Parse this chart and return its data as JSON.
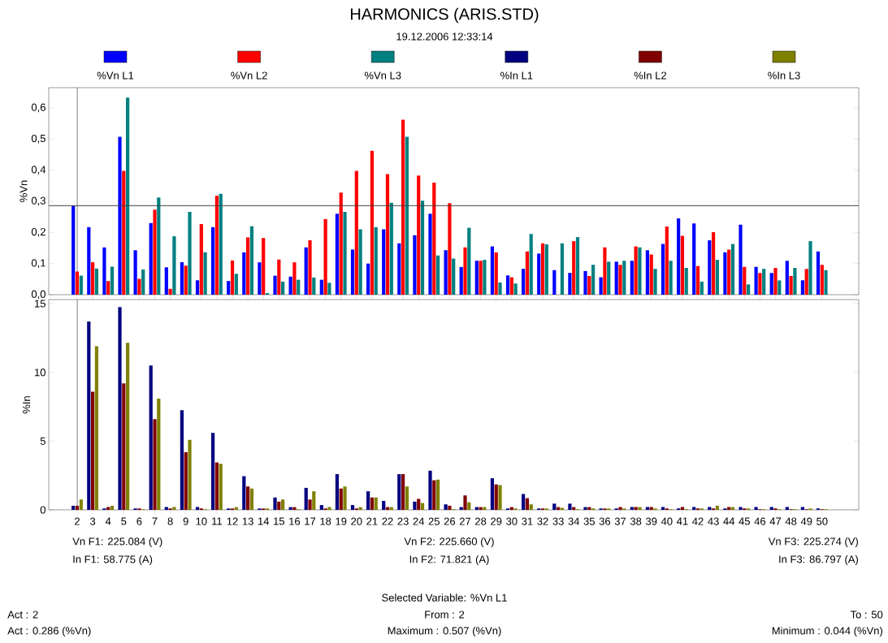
{
  "chart_data": [
    {
      "type": "bar",
      "title": "HARMONICS (ARIS.STD)",
      "subtitle": "19.12.2006 12:33:14",
      "ylabel": "%Vn",
      "legend": "top",
      "tick_labels": "y",
      "categories": [
        "2",
        "3",
        "4",
        "5",
        "6",
        "7",
        "8",
        "9",
        "10",
        "11",
        "12",
        "13",
        "14",
        "15",
        "16",
        "17",
        "18",
        "19",
        "20",
        "21",
        "22",
        "23",
        "24",
        "25",
        "26",
        "27",
        "28",
        "29",
        "30",
        "31",
        "32",
        "33",
        "34",
        "35",
        "36",
        "37",
        "38",
        "39",
        "40",
        "41",
        "42",
        "43",
        "44",
        "45",
        "46",
        "47",
        "48",
        "49",
        "50"
      ],
      "ylim": [
        0,
        0.665
      ],
      "yticks": [
        {
          "value": 0,
          "label": "0,0"
        },
        {
          "value": 0.1,
          "label": "0,1"
        },
        {
          "value": 0.2,
          "label": "0,2"
        },
        {
          "value": 0.3,
          "label": "0,3"
        },
        {
          "value": 0.4,
          "label": "0,4"
        },
        {
          "value": 0.5,
          "label": "0,5"
        },
        {
          "value": 0.6,
          "label": "0,6"
        }
      ],
      "ref_lines": [
        {
          "axis": "y",
          "value": 0.286,
          "color": "#404040"
        },
        {
          "axis": "x",
          "value": "2",
          "color": "#404040"
        }
      ],
      "series": [
        {
          "name": "%Vn L1",
          "color": "#0000ff",
          "values": [
            0.286,
            0.217,
            0.152,
            0.507,
            0.143,
            0.23,
            0.088,
            0.104,
            0.046,
            0.217,
            0.044,
            0.136,
            0.104,
            0.061,
            0.058,
            0.152,
            0.048,
            0.26,
            0.145,
            0.1,
            0.21,
            0.165,
            0.191,
            0.26,
            0.143,
            0.089,
            0.109,
            0.155,
            0.062,
            0.083,
            0.132,
            0.079,
            0.07,
            0.076,
            0.056,
            0.106,
            0.109,
            0.143,
            0.163,
            0.245,
            0.229,
            0.175,
            0.136,
            0.225,
            0.089,
            0.07,
            0.109,
            0.046,
            0.139
          ]
        },
        {
          "name": "%Vn L2",
          "color": "#ff0000",
          "values": [
            0.074,
            0.104,
            0.044,
            0.398,
            0.051,
            0.273,
            0.019,
            0.093,
            0.227,
            0.318,
            0.11,
            0.184,
            0.182,
            0.113,
            0.104,
            0.175,
            0.243,
            0.328,
            0.398,
            0.462,
            0.387,
            0.562,
            0.383,
            0.36,
            0.294,
            0.152,
            0.109,
            0.136,
            0.056,
            0.139,
            0.165,
            0.0,
            0.172,
            0.06,
            0.152,
            0.096,
            0.155,
            0.129,
            0.219,
            0.189,
            0.092,
            0.201,
            0.145,
            0.089,
            0.07,
            0.086,
            0.06,
            0.083,
            0.096
          ]
        },
        {
          "name": "%Vn L3",
          "color": "#008080",
          "values": [
            0.061,
            0.084,
            0.09,
            0.633,
            0.081,
            0.312,
            0.188,
            0.266,
            0.136,
            0.324,
            0.067,
            0.22,
            0.005,
            0.042,
            0.048,
            0.055,
            0.038,
            0.266,
            0.21,
            0.217,
            0.295,
            0.507,
            0.302,
            0.126,
            0.116,
            0.215,
            0.112,
            0.039,
            0.036,
            0.195,
            0.162,
            0.165,
            0.185,
            0.096,
            0.106,
            0.109,
            0.152,
            0.083,
            0.109,
            0.086,
            0.042,
            0.112,
            0.163,
            0.033,
            0.083,
            0.046,
            0.086,
            0.172,
            0.079
          ]
        }
      ]
    },
    {
      "type": "bar",
      "ylabel": "%In",
      "legend": "top",
      "categories": [
        "2",
        "3",
        "4",
        "5",
        "6",
        "7",
        "8",
        "9",
        "10",
        "11",
        "12",
        "13",
        "14",
        "15",
        "16",
        "17",
        "18",
        "19",
        "20",
        "21",
        "22",
        "23",
        "24",
        "25",
        "26",
        "27",
        "28",
        "29",
        "30",
        "31",
        "32",
        "33",
        "34",
        "35",
        "36",
        "37",
        "38",
        "39",
        "40",
        "41",
        "42",
        "43",
        "44",
        "45",
        "46",
        "47",
        "48",
        "49",
        "50"
      ],
      "ylim": [
        0,
        15.3
      ],
      "yticks": [
        0,
        5,
        10,
        15
      ],
      "ref_lines": [
        {
          "axis": "x",
          "value": "2",
          "color": "#404040"
        }
      ],
      "annotations": [
        "Vn F1: 225.084 (V)",
        "In F1: 58.775 (A)",
        "Vn F2: 225.660 (V)",
        "In F2: 71.821 (A)",
        "Vn F3: 225.274 (V)",
        "In F3: 86.797 (A)",
        "Selected Variable: %Vn L1",
        "Act : 2",
        "From : 2",
        "To : 50",
        "Act : 0.286 (%Vn)",
        "Maximum : 0.507 (%Vn)",
        "Minimum : 0.044 (%Vn)"
      ],
      "series": [
        {
          "name": "%In L1",
          "color": "#000080",
          "values": [
            0.3,
            13.7,
            0.1,
            14.75,
            0.1,
            10.5,
            0.2,
            7.25,
            0.2,
            5.6,
            0.1,
            2.45,
            0.1,
            0.9,
            0.2,
            1.6,
            0.35,
            2.6,
            0.35,
            1.35,
            0.65,
            2.6,
            0.6,
            2.85,
            0.4,
            0.2,
            0.2,
            2.3,
            0.1,
            1.15,
            0.1,
            0.45,
            0.45,
            0.2,
            0.1,
            0.1,
            0.2,
            0.2,
            0.2,
            0.1,
            0.2,
            0.2,
            0.1,
            0.2,
            0.2,
            0.2,
            0.2,
            0.2,
            0.1
          ]
        },
        {
          "name": "%In L2",
          "color": "#800000",
          "values": [
            0.3,
            8.6,
            0.2,
            9.2,
            0.1,
            6.6,
            0.1,
            4.2,
            0.1,
            3.45,
            0.1,
            1.7,
            0.1,
            0.6,
            0.2,
            0.75,
            0.1,
            1.55,
            0.1,
            0.9,
            0.2,
            2.6,
            0.8,
            2.15,
            0.3,
            1.05,
            0.2,
            1.85,
            0.2,
            0.85,
            0.1,
            0.2,
            0.2,
            0.2,
            0.1,
            0.2,
            0.2,
            0.2,
            0.1,
            0.2,
            0.1,
            0.1,
            0.2,
            0.1,
            0.05,
            0.1,
            0.05,
            0.05,
            0.05
          ]
        },
        {
          "name": "%In L3",
          "color": "#808000",
          "values": [
            0.75,
            11.9,
            0.3,
            12.15,
            0.05,
            8.1,
            0.2,
            5.1,
            0.05,
            3.35,
            0.2,
            1.55,
            0.1,
            0.75,
            0.05,
            1.35,
            0.2,
            1.7,
            0.2,
            0.9,
            0.2,
            1.7,
            0.5,
            2.2,
            0.05,
            0.55,
            0.2,
            1.8,
            0.1,
            0.4,
            0.1,
            0.15,
            0.05,
            0.1,
            0.1,
            0.1,
            0.2,
            0.1,
            0.05,
            0.05,
            0.1,
            0.3,
            0.2,
            0.1,
            0.05,
            0.05,
            0.05,
            0.1,
            0.05
          ]
        }
      ]
    }
  ]
}
